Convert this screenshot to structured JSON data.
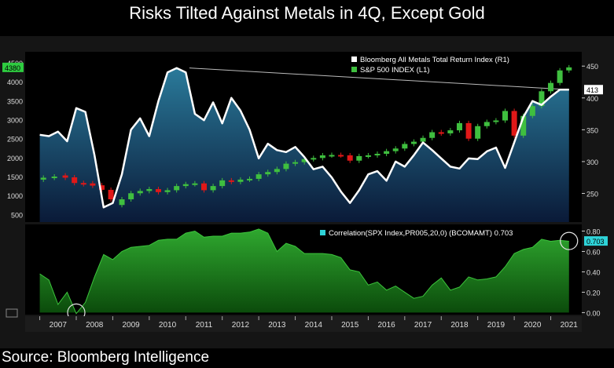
{
  "title": "Risks Tilted Against Metals in 4Q, Except Gold",
  "source": "Source: Bloomberg Intelligence",
  "colors": {
    "metals_line": "#ffffff",
    "candle_up": "#3fbf3f",
    "candle_down": "#e01818",
    "correlation_fill": "#1f9a1f",
    "correlation_legend": "#2ed3d8",
    "current_label_bg": "#2ecc40"
  },
  "chart_data": [
    {
      "type": "line",
      "panel": "upper",
      "legend": [
        {
          "name": "Bloomberg All Metals Total Return Index  (R1)",
          "swatch": "#ffffff"
        },
        {
          "name": "S&P 500 INDEX (L1)",
          "swatch": "#3fbf3f"
        }
      ],
      "left_axis": {
        "ticks": [
          500,
          1000,
          1500,
          2000,
          2500,
          3000,
          3500,
          4000,
          4500
        ],
        "current": "4380"
      },
      "right_axis": {
        "ticks": [
          250,
          300,
          350,
          400,
          450
        ],
        "current": "413"
      },
      "x_ticks": [
        "2007",
        "2008",
        "2009",
        "2010",
        "2011",
        "2012",
        "2013",
        "2014",
        "2015",
        "2016",
        "2017",
        "2018",
        "2019",
        "2020",
        "2021"
      ],
      "metals_series": {
        "name": "Bloomberg All Metals Total Return Index",
        "x": [
          2007.0,
          2007.25,
          2007.5,
          2007.75,
          2008.0,
          2008.25,
          2008.5,
          2008.75,
          2009.0,
          2009.25,
          2009.5,
          2009.75,
          2010.0,
          2010.25,
          2010.5,
          2010.75,
          2011.0,
          2011.25,
          2011.5,
          2011.75,
          2012.0,
          2012.25,
          2012.5,
          2012.75,
          2013.0,
          2013.25,
          2013.5,
          2013.75,
          2014.0,
          2014.25,
          2014.5,
          2014.75,
          2015.0,
          2015.25,
          2015.5,
          2015.75,
          2016.0,
          2016.25,
          2016.5,
          2016.75,
          2017.0,
          2017.25,
          2017.5,
          2017.75,
          2018.0,
          2018.25,
          2018.5,
          2018.75,
          2019.0,
          2019.25,
          2019.5,
          2019.75,
          2020.0,
          2020.25,
          2020.5,
          2020.75,
          2021.0,
          2021.25,
          2021.5
        ],
        "values": [
          342,
          340,
          347,
          332,
          384,
          378,
          310,
          228,
          235,
          280,
          350,
          368,
          340,
          395,
          440,
          447,
          440,
          375,
          365,
          393,
          360,
          400,
          380,
          350,
          305,
          328,
          318,
          315,
          323,
          307,
          288,
          292,
          275,
          253,
          235,
          255,
          280,
          285,
          270,
          300,
          292,
          310,
          330,
          318,
          305,
          292,
          289,
          305,
          304,
          316,
          322,
          290,
          330,
          370,
          395,
          389,
          402,
          413,
          413
        ]
      },
      "spx_candles": [
        {
          "x": 2007.1,
          "open": 1420,
          "close": 1470
        },
        {
          "x": 2007.4,
          "open": 1470,
          "close": 1500
        },
        {
          "x": 2007.7,
          "open": 1530,
          "close": 1470
        },
        {
          "x": 2007.95,
          "open": 1480,
          "close": 1330
        },
        {
          "x": 2008.2,
          "open": 1330,
          "close": 1300
        },
        {
          "x": 2008.45,
          "open": 1320,
          "close": 1260
        },
        {
          "x": 2008.7,
          "open": 1270,
          "close": 1150
        },
        {
          "x": 2008.95,
          "open": 1150,
          "close": 900
        },
        {
          "x": 2009.25,
          "open": 750,
          "close": 900
        },
        {
          "x": 2009.5,
          "open": 900,
          "close": 1060
        },
        {
          "x": 2009.75,
          "open": 1060,
          "close": 1120
        },
        {
          "x": 2010.0,
          "open": 1120,
          "close": 1170
        },
        {
          "x": 2010.25,
          "open": 1170,
          "close": 1090
        },
        {
          "x": 2010.5,
          "open": 1090,
          "close": 1140
        },
        {
          "x": 2010.75,
          "open": 1140,
          "close": 1250
        },
        {
          "x": 2011.0,
          "open": 1250,
          "close": 1300
        },
        {
          "x": 2011.25,
          "open": 1300,
          "close": 1320
        },
        {
          "x": 2011.5,
          "open": 1320,
          "close": 1140
        },
        {
          "x": 2011.75,
          "open": 1140,
          "close": 1250
        },
        {
          "x": 2012.0,
          "open": 1250,
          "close": 1400
        },
        {
          "x": 2012.25,
          "open": 1400,
          "close": 1360
        },
        {
          "x": 2012.5,
          "open": 1360,
          "close": 1420
        },
        {
          "x": 2012.75,
          "open": 1420,
          "close": 1440
        },
        {
          "x": 2013.0,
          "open": 1440,
          "close": 1560
        },
        {
          "x": 2013.25,
          "open": 1560,
          "close": 1620
        },
        {
          "x": 2013.5,
          "open": 1620,
          "close": 1700
        },
        {
          "x": 2013.75,
          "open": 1700,
          "close": 1840
        },
        {
          "x": 2014.0,
          "open": 1840,
          "close": 1880
        },
        {
          "x": 2014.25,
          "open": 1880,
          "close": 1960
        },
        {
          "x": 2014.5,
          "open": 1960,
          "close": 1990
        },
        {
          "x": 2014.75,
          "open": 1990,
          "close": 2060
        },
        {
          "x": 2015.0,
          "open": 2060,
          "close": 2070
        },
        {
          "x": 2015.25,
          "open": 2070,
          "close": 2060
        },
        {
          "x": 2015.5,
          "open": 2060,
          "close": 1920
        },
        {
          "x": 2015.75,
          "open": 1920,
          "close": 2040
        },
        {
          "x": 2016.0,
          "open": 2040,
          "close": 2060
        },
        {
          "x": 2016.25,
          "open": 2060,
          "close": 2100
        },
        {
          "x": 2016.5,
          "open": 2100,
          "close": 2170
        },
        {
          "x": 2016.75,
          "open": 2170,
          "close": 2240
        },
        {
          "x": 2017.0,
          "open": 2240,
          "close": 2360
        },
        {
          "x": 2017.25,
          "open": 2360,
          "close": 2420
        },
        {
          "x": 2017.5,
          "open": 2420,
          "close": 2520
        },
        {
          "x": 2017.75,
          "open": 2520,
          "close": 2670
        },
        {
          "x": 2018.0,
          "open": 2670,
          "close": 2640
        },
        {
          "x": 2018.25,
          "open": 2640,
          "close": 2720
        },
        {
          "x": 2018.5,
          "open": 2720,
          "close": 2910
        },
        {
          "x": 2018.75,
          "open": 2910,
          "close": 2500
        },
        {
          "x": 2019.0,
          "open": 2500,
          "close": 2830
        },
        {
          "x": 2019.25,
          "open": 2830,
          "close": 2940
        },
        {
          "x": 2019.5,
          "open": 2940,
          "close": 2980
        },
        {
          "x": 2019.75,
          "open": 2980,
          "close": 3230
        },
        {
          "x": 2020.0,
          "open": 3230,
          "close": 2580
        },
        {
          "x": 2020.25,
          "open": 2580,
          "close": 3100
        },
        {
          "x": 2020.5,
          "open": 3100,
          "close": 3360
        },
        {
          "x": 2020.75,
          "open": 3360,
          "close": 3750
        },
        {
          "x": 2021.0,
          "open": 3750,
          "close": 3970
        },
        {
          "x": 2021.25,
          "open": 3970,
          "close": 4300
        },
        {
          "x": 2021.5,
          "open": 4300,
          "close": 4380
        }
      ],
      "trendline": {
        "x": [
          2011.1,
          2021.5
        ],
        "metals_values": [
          447,
          413
        ]
      }
    },
    {
      "type": "area",
      "panel": "lower",
      "legend": [
        {
          "name": "Correlation(SPX Index,PR005,20,0) (BCOMAMT) 0.703",
          "swatch": "#2ed3d8"
        }
      ],
      "right_axis": {
        "ticks": [
          "0.00",
          "0.20",
          "0.40",
          "0.60",
          "0.80"
        ],
        "current": "0.703"
      },
      "x": [
        2007.0,
        2007.25,
        2007.5,
        2007.75,
        2008.0,
        2008.25,
        2008.5,
        2008.75,
        2009.0,
        2009.25,
        2009.5,
        2009.75,
        2010.0,
        2010.25,
        2010.5,
        2010.75,
        2011.0,
        2011.25,
        2011.5,
        2011.75,
        2012.0,
        2012.25,
        2012.5,
        2012.75,
        2013.0,
        2013.25,
        2013.5,
        2013.75,
        2014.0,
        2014.25,
        2014.5,
        2014.75,
        2015.0,
        2015.25,
        2015.5,
        2015.75,
        2016.0,
        2016.25,
        2016.5,
        2016.75,
        2017.0,
        2017.25,
        2017.5,
        2017.75,
        2018.0,
        2018.25,
        2018.5,
        2018.75,
        2019.0,
        2019.25,
        2019.5,
        2019.75,
        2020.0,
        2020.25,
        2020.5,
        2020.75,
        2021.0,
        2021.25,
        2021.5
      ],
      "values": [
        0.38,
        0.32,
        0.08,
        0.2,
        -0.01,
        0.1,
        0.35,
        0.57,
        0.52,
        0.6,
        0.64,
        0.65,
        0.66,
        0.71,
        0.72,
        0.72,
        0.78,
        0.8,
        0.74,
        0.75,
        0.75,
        0.78,
        0.78,
        0.79,
        0.82,
        0.78,
        0.6,
        0.68,
        0.65,
        0.58,
        0.58,
        0.58,
        0.57,
        0.54,
        0.42,
        0.4,
        0.27,
        0.3,
        0.22,
        0.26,
        0.2,
        0.14,
        0.16,
        0.27,
        0.34,
        0.22,
        0.25,
        0.35,
        0.32,
        0.33,
        0.35,
        0.45,
        0.58,
        0.62,
        0.64,
        0.72,
        0.7,
        0.71,
        0.7
      ],
      "ylim": [
        -0.02,
        0.85
      ],
      "markers": [
        {
          "x": 2008.0,
          "y": 0.0
        },
        {
          "x": 2021.5,
          "y": 0.703
        }
      ]
    }
  ]
}
